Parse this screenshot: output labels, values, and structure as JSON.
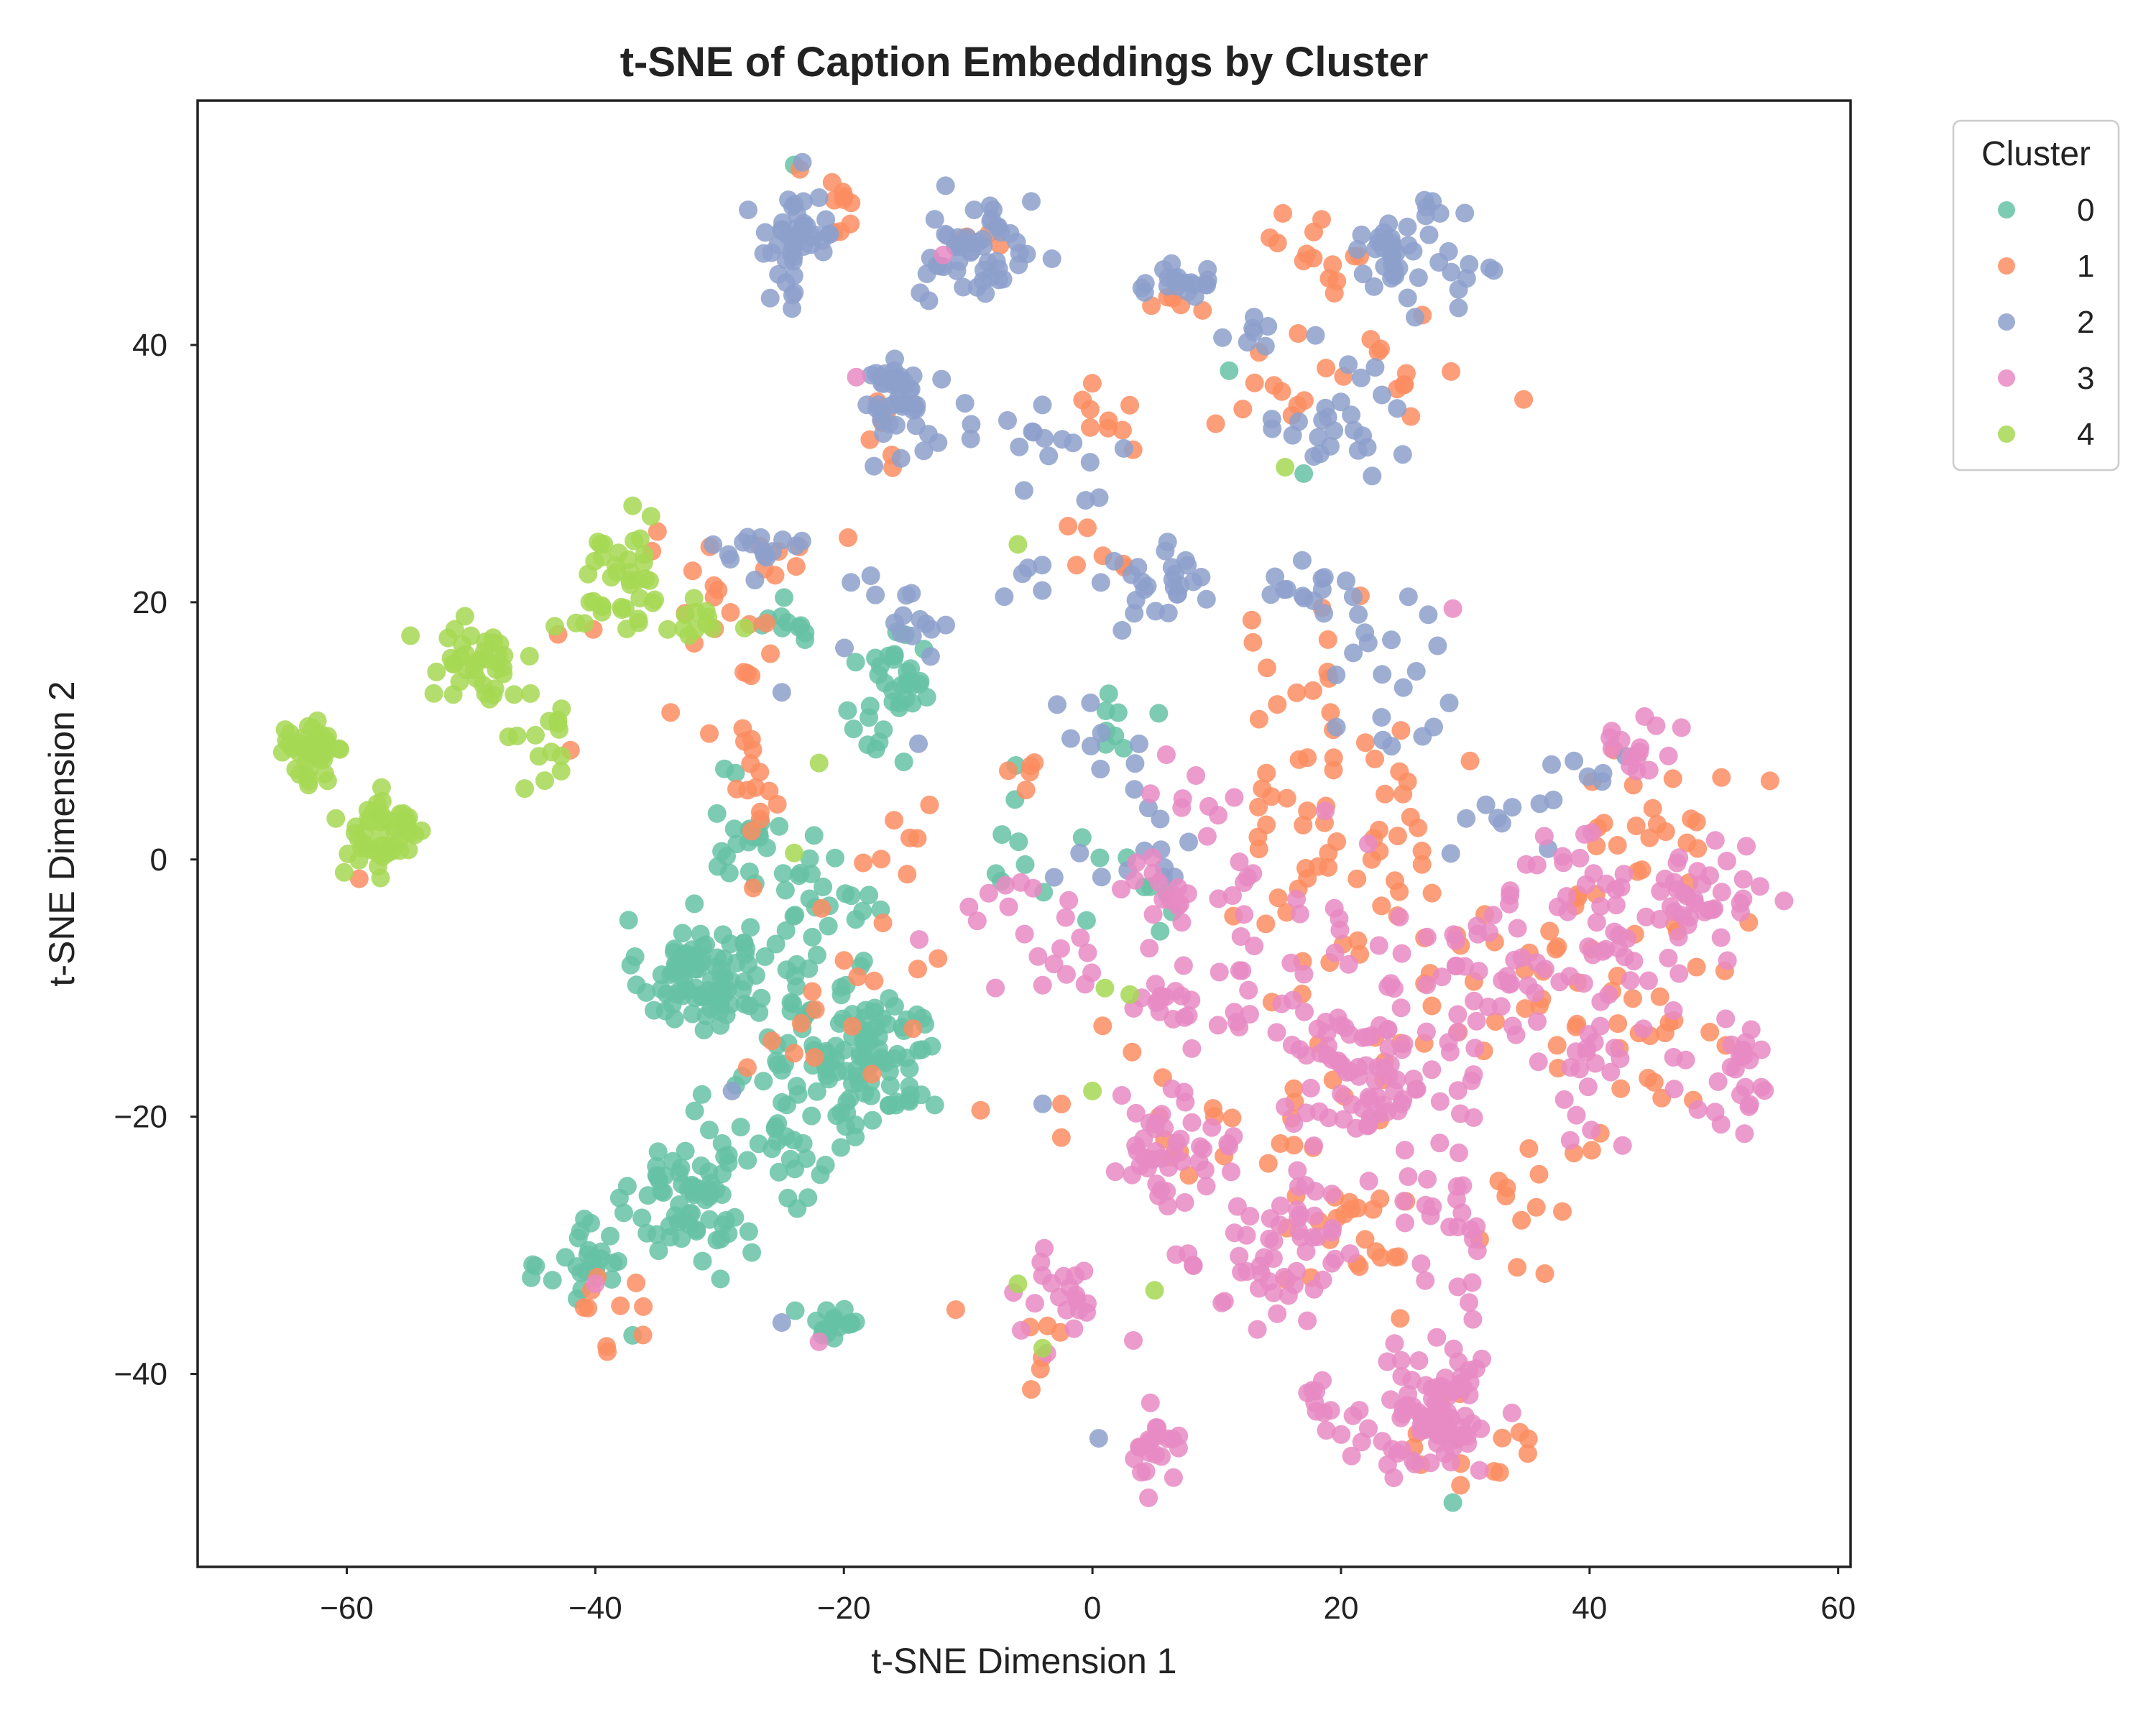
{
  "chart_data": {
    "type": "scatter",
    "title": "t-SNE of Caption Embeddings by Cluster",
    "xlabel": "t-SNE Dimension 1",
    "ylabel": "t-SNE Dimension 2",
    "xlim": [
      -72,
      61
    ],
    "ylim": [
      -55,
      59
    ],
    "xticks": [
      -60,
      -40,
      -20,
      0,
      20,
      40,
      60
    ],
    "yticks": [
      -40,
      -20,
      0,
      20,
      40
    ],
    "grid": false,
    "legend": {
      "title": "Cluster",
      "placement": "outside-top-right"
    },
    "series": [
      {
        "name": "0",
        "color": "#66c2a5",
        "clusters": [
          {
            "cx": -32,
            "cy": -9,
            "sx": 2.2,
            "sy": 2.2,
            "n": 85
          },
          {
            "cx": -32,
            "cy": -26,
            "sx": 2.5,
            "sy": 2.5,
            "n": 65
          },
          {
            "cx": -18,
            "cy": -16,
            "sx": 3.0,
            "sy": 3.0,
            "n": 90
          },
          {
            "cx": -23,
            "cy": -10,
            "sx": 3.5,
            "sy": 3.0,
            "n": 40
          },
          {
            "cx": -40,
            "cy": -31,
            "sx": 2.0,
            "sy": 1.8,
            "n": 28
          },
          {
            "cx": -21,
            "cy": -36,
            "sx": 1.2,
            "sy": 1.2,
            "n": 18
          },
          {
            "cx": -16,
            "cy": 13,
            "sx": 2.0,
            "sy": 2.5,
            "n": 35
          },
          {
            "cx": -28,
            "cy": 2,
            "sx": 1.5,
            "sy": 1.8,
            "n": 20
          },
          {
            "cx": -25,
            "cy": 19,
            "sx": 1.5,
            "sy": 1.2,
            "n": 10
          },
          {
            "cx": -20,
            "cy": -2,
            "sx": 3.0,
            "sy": 2.0,
            "n": 20
          },
          {
            "cx": -25,
            "cy": -23,
            "sx": 2.5,
            "sy": 3.0,
            "n": 25
          },
          {
            "cx": -6,
            "cy": 0,
            "sx": 5.0,
            "sy": 4.0,
            "n": 12
          },
          {
            "cx": 6,
            "cy": -2,
            "sx": 2.0,
            "sy": 2.0,
            "n": 6
          },
          {
            "cx": 2,
            "cy": 12,
            "sx": 2.0,
            "sy": 3.0,
            "n": 8
          }
        ],
        "points": [
          [
            -24,
            54
          ],
          [
            11,
            38
          ],
          [
            29,
            -50
          ],
          [
            -37,
            -37
          ],
          [
            17,
            30
          ]
        ]
      },
      {
        "name": "1",
        "color": "#fc8d62",
        "clusters": [
          {
            "cx": -21,
            "cy": 51,
            "sx": 1.8,
            "sy": 1.2,
            "n": 10
          },
          {
            "cx": -9,
            "cy": 49,
            "sx": 1.5,
            "sy": 1.0,
            "n": 5
          },
          {
            "cx": 19,
            "cy": 47,
            "sx": 2.0,
            "sy": 1.8,
            "n": 14
          },
          {
            "cx": 20,
            "cy": 38,
            "sx": 5.0,
            "sy": 2.5,
            "n": 22
          },
          {
            "cx": 2,
            "cy": 34,
            "sx": 3.0,
            "sy": 1.0,
            "n": 10
          },
          {
            "cx": 7,
            "cy": 43,
            "sx": 1.5,
            "sy": 1.0,
            "n": 5
          },
          {
            "cx": -18,
            "cy": 33,
            "sx": 2.0,
            "sy": 2.0,
            "n": 8
          },
          {
            "cx": -30,
            "cy": 18,
            "sx": 3.5,
            "sy": 4.0,
            "n": 20
          },
          {
            "cx": -27,
            "cy": 6,
            "sx": 1.5,
            "sy": 2.5,
            "n": 15
          },
          {
            "cx": -24,
            "cy": 24,
            "sx": 1.5,
            "sy": 1.0,
            "n": 6
          },
          {
            "cx": 18,
            "cy": 9,
            "sx": 4.0,
            "sy": 6.0,
            "n": 40
          },
          {
            "cx": 22,
            "cy": -5,
            "sx": 6.0,
            "sy": 5.0,
            "n": 40
          },
          {
            "cx": 33,
            "cy": -8,
            "sx": 4.0,
            "sy": 4.0,
            "n": 15
          },
          {
            "cx": 44,
            "cy": -10,
            "sx": 4.0,
            "sy": 7.0,
            "n": 45
          },
          {
            "cx": 46,
            "cy": 5,
            "sx": 3.0,
            "sy": 4.0,
            "n": 15
          },
          {
            "cx": 31,
            "cy": -45,
            "sx": 2.5,
            "sy": 2.0,
            "n": 15
          },
          {
            "cx": 20,
            "cy": -26,
            "sx": 4.0,
            "sy": 5.0,
            "n": 35
          },
          {
            "cx": 7,
            "cy": -18,
            "sx": 7.0,
            "sy": 4.0,
            "n": 15
          },
          {
            "cx": 34,
            "cy": -27,
            "sx": 2.0,
            "sy": 3.0,
            "n": 10
          },
          {
            "cx": -18,
            "cy": -8,
            "sx": 3.0,
            "sy": 3.0,
            "n": 10
          },
          {
            "cx": -22,
            "cy": -15,
            "sx": 2.5,
            "sy": 2.0,
            "n": 8
          },
          {
            "cx": -40,
            "cy": -35,
            "sx": 2.5,
            "sy": 2.0,
            "n": 10
          },
          {
            "cx": -3,
            "cy": -37,
            "sx": 2.0,
            "sy": 1.5,
            "n": 6
          },
          {
            "cx": -14,
            "cy": 2,
            "sx": 2.0,
            "sy": 2.0,
            "n": 6
          },
          {
            "cx": 1,
            "cy": 24,
            "sx": 2.0,
            "sy": 1.5,
            "n": 6
          },
          {
            "cx": -6,
            "cy": 6,
            "sx": 2.0,
            "sy": 1.0,
            "n": 5
          }
        ],
        "points": [
          [
            -59,
            -1.5
          ],
          [
            -42,
            8.5
          ],
          [
            -35,
            25.5
          ],
          [
            -43,
            17.5
          ],
          [
            -9,
            -19.5
          ],
          [
            -11,
            -35
          ]
        ]
      },
      {
        "name": "2",
        "color": "#8da0cb",
        "clusters": [
          {
            "cx": -24,
            "cy": 48,
            "sx": 1.8,
            "sy": 2.2,
            "n": 45
          },
          {
            "cx": -9,
            "cy": 47,
            "sx": 2.2,
            "sy": 2.2,
            "n": 50
          },
          {
            "cx": 7,
            "cy": 45,
            "sx": 1.5,
            "sy": 0.8,
            "n": 20
          },
          {
            "cx": 25,
            "cy": 47,
            "sx": 2.5,
            "sy": 1.8,
            "n": 45
          },
          {
            "cx": -16,
            "cy": 36,
            "sx": 1.5,
            "sy": 1.5,
            "n": 35
          },
          {
            "cx": -11,
            "cy": 34,
            "sx": 3.0,
            "sy": 1.5,
            "n": 15
          },
          {
            "cx": -2,
            "cy": 32,
            "sx": 2.5,
            "sy": 1.5,
            "n": 12
          },
          {
            "cx": 20,
            "cy": 34,
            "sx": 2.5,
            "sy": 2.0,
            "n": 25
          },
          {
            "cx": 14,
            "cy": 40,
            "sx": 2.0,
            "sy": 2.0,
            "n": 8
          },
          {
            "cx": -27,
            "cy": 24,
            "sx": 2.0,
            "sy": 1.0,
            "n": 15
          },
          {
            "cx": 5,
            "cy": 22,
            "sx": 2.0,
            "sy": 2.0,
            "n": 25
          },
          {
            "cx": -15,
            "cy": 19,
            "sx": 2.0,
            "sy": 1.5,
            "n": 15
          },
          {
            "cx": 18,
            "cy": 21,
            "sx": 3.0,
            "sy": 1.5,
            "n": 15
          },
          {
            "cx": 25,
            "cy": 18,
            "sx": 2.0,
            "sy": 1.5,
            "n": 8
          },
          {
            "cx": 23,
            "cy": 11,
            "sx": 3.0,
            "sy": 1.5,
            "n": 10
          },
          {
            "cx": 5,
            "cy": 1,
            "sx": 4.0,
            "sy": 1.5,
            "n": 12
          },
          {
            "cx": 3,
            "cy": 10,
            "sx": 3.0,
            "sy": 3.0,
            "n": 10
          },
          {
            "cx": 33,
            "cy": 3,
            "sx": 3.0,
            "sy": 3.0,
            "n": 10
          },
          {
            "cx": 40,
            "cy": 7,
            "sx": 2.0,
            "sy": 1.0,
            "n": 5
          },
          {
            "cx": -5,
            "cy": 22,
            "sx": 2.0,
            "sy": 2.0,
            "n": 5
          }
        ],
        "points": [
          [
            0.5,
            -45
          ],
          [
            -4,
            -19
          ],
          [
            -25,
            -36
          ],
          [
            -29,
            -18
          ],
          [
            -25,
            13
          ],
          [
            -14,
            9
          ]
        ]
      },
      {
        "name": "3",
        "color": "#e78ac3",
        "clusters": [
          {
            "cx": 28,
            "cy": -43,
            "sx": 2.2,
            "sy": 2.5,
            "n": 75
          },
          {
            "cx": 5,
            "cy": -46,
            "sx": 1.0,
            "sy": 1.2,
            "n": 20
          },
          {
            "cx": 6,
            "cy": -23,
            "sx": 3.0,
            "sy": 2.5,
            "n": 45
          },
          {
            "cx": 22,
            "cy": -17,
            "sx": 3.0,
            "sy": 2.5,
            "n": 60
          },
          {
            "cx": 17,
            "cy": -29,
            "sx": 3.5,
            "sy": 3.0,
            "n": 45
          },
          {
            "cx": 29,
            "cy": -28,
            "sx": 2.0,
            "sy": 3.0,
            "n": 25
          },
          {
            "cx": 48,
            "cy": -4,
            "sx": 2.5,
            "sy": 2.0,
            "n": 35
          },
          {
            "cx": 52,
            "cy": -17,
            "sx": 2.0,
            "sy": 2.5,
            "n": 25
          },
          {
            "cx": 40,
            "cy": -6,
            "sx": 4.0,
            "sy": 5.0,
            "n": 60
          },
          {
            "cx": 30,
            "cy": -11,
            "sx": 5.0,
            "sy": 5.0,
            "n": 40
          },
          {
            "cx": 15,
            "cy": -8,
            "sx": 6.0,
            "sy": 5.0,
            "n": 45
          },
          {
            "cx": -3,
            "cy": -34,
            "sx": 2.0,
            "sy": 2.0,
            "n": 20
          },
          {
            "cx": 6,
            "cy": -11,
            "sx": 2.0,
            "sy": 1.5,
            "n": 15
          },
          {
            "cx": 6,
            "cy": -3,
            "sx": 2.0,
            "sy": 1.5,
            "n": 12
          },
          {
            "cx": -3,
            "cy": -8,
            "sx": 1.5,
            "sy": 2.0,
            "n": 12
          },
          {
            "cx": 44,
            "cy": 9,
            "sx": 2.0,
            "sy": 2.0,
            "n": 15
          },
          {
            "cx": 21,
            "cy": -44,
            "sx": 2.5,
            "sy": 1.5,
            "n": 10
          },
          {
            "cx": 18,
            "cy": -42,
            "sx": 0.5,
            "sy": 1.5,
            "n": 8
          },
          {
            "cx": 8,
            "cy": 2,
            "sx": 4.0,
            "sy": 3.0,
            "n": 12
          },
          {
            "cx": -8,
            "cy": -3,
            "sx": 3.0,
            "sy": 2.0,
            "n": 8
          },
          {
            "cx": 12,
            "cy": -32,
            "sx": 3.0,
            "sy": 2.0,
            "n": 10
          },
          {
            "cx": 42,
            "cy": -19,
            "sx": 2.5,
            "sy": 3.0,
            "n": 12
          }
        ],
        "points": [
          [
            -19,
            37.5
          ],
          [
            29,
            19.5
          ],
          [
            -22,
            -37.5
          ],
          [
            -40,
            -33
          ],
          [
            -12,
            47
          ],
          [
            -7,
            -2
          ]
        ]
      },
      {
        "name": "4",
        "color": "#a6d854",
        "clusters": [
          {
            "cx": -63,
            "cy": 8,
            "sx": 1.5,
            "sy": 1.3,
            "n": 45
          },
          {
            "cx": -57,
            "cy": 2,
            "sx": 1.7,
            "sy": 1.7,
            "n": 50
          },
          {
            "cx": -50,
            "cy": 15,
            "sx": 1.8,
            "sy": 1.8,
            "n": 40
          },
          {
            "cx": -44,
            "cy": 9,
            "sx": 1.2,
            "sy": 1.5,
            "n": 14
          },
          {
            "cx": -38,
            "cy": 21,
            "sx": 2.5,
            "sy": 2.2,
            "n": 40
          },
          {
            "cx": -33,
            "cy": 19,
            "sx": 1.5,
            "sy": 1.0,
            "n": 10
          }
        ],
        "points": [
          [
            -24,
            0.5
          ],
          [
            -22,
            7.5
          ],
          [
            1,
            -10
          ],
          [
            3,
            -10.5
          ],
          [
            -4,
            -38
          ],
          [
            0,
            -18
          ],
          [
            -6,
            -33
          ],
          [
            -6,
            24.5
          ],
          [
            -28,
            18
          ],
          [
            5,
            -33.5
          ],
          [
            15.5,
            30.5
          ],
          [
            -37,
            27.5
          ]
        ]
      }
    ]
  }
}
